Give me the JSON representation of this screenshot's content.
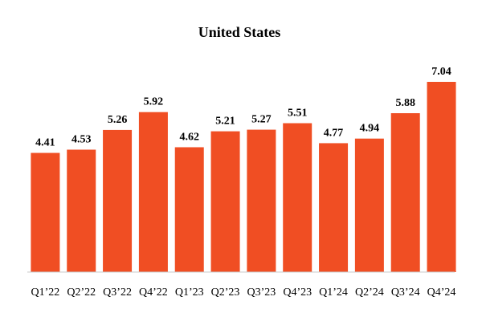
{
  "chart_data": {
    "type": "bar",
    "title": "United States",
    "categories": [
      "Q1’22",
      "Q2’22",
      "Q3’22",
      "Q4’22",
      "Q1’23",
      "Q2’23",
      "Q3’23",
      "Q4’23",
      "Q1’24",
      "Q2’24",
      "Q3’24",
      "Q4’24"
    ],
    "values": [
      4.41,
      4.53,
      5.26,
      5.92,
      4.62,
      5.21,
      5.27,
      5.51,
      4.77,
      4.94,
      5.88,
      7.04
    ],
    "data_labels": [
      "4.41",
      "4.53",
      "5.26",
      "5.92",
      "4.62",
      "5.21",
      "5.27",
      "5.51",
      "4.77",
      "4.94",
      "5.88",
      "7.04"
    ],
    "xlabel": "",
    "ylabel": "",
    "ylim": [
      0,
      7.04
    ],
    "grid": false,
    "bar_color": "#F04E23",
    "axis_color": "#C8C8C8"
  }
}
